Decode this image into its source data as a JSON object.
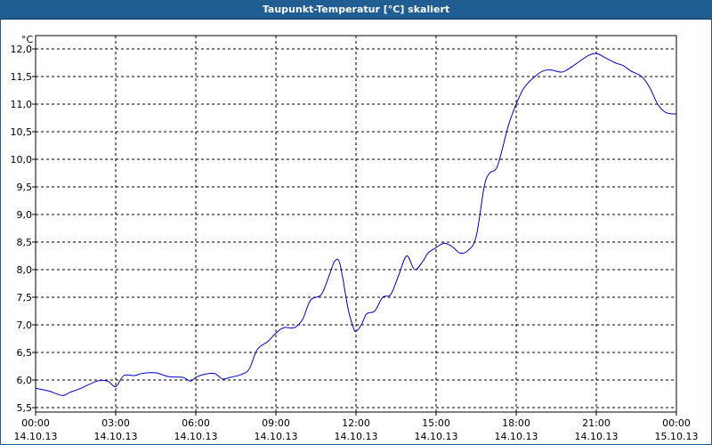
{
  "window": {
    "title": "Taupunkt-Temperatur [°C] skaliert"
  },
  "chart_data": {
    "type": "line",
    "title": "Taupunkt-Temperatur [°C] skaliert",
    "unit": "°C",
    "xlabel": "",
    "ylabel": "",
    "ylim": [
      5.5,
      12.0
    ],
    "xlim": [
      "2013-10-14 00:00",
      "2013-10-15 00:00"
    ],
    "grid": true,
    "y_ticks": [
      "12,0",
      "11,5",
      "11,0",
      "10,5",
      "10,0",
      "9,5",
      "9,0",
      "8,5",
      "8,0",
      "7,5",
      "7,0",
      "6,5",
      "6,0",
      "5,5"
    ],
    "x_ticks": [
      {
        "time": "00:00",
        "date": "14.10.13"
      },
      {
        "time": "03:00",
        "date": "14.10.13"
      },
      {
        "time": "06:00",
        "date": "14.10.13"
      },
      {
        "time": "09:00",
        "date": "14.10.13"
      },
      {
        "time": "12:00",
        "date": "14.10.13"
      },
      {
        "time": "15:00",
        "date": "14.10.13"
      },
      {
        "time": "18:00",
        "date": "14.10.13"
      },
      {
        "time": "21:00",
        "date": "14.10.13"
      },
      {
        "time": "00:00",
        "date": "15.10.13"
      }
    ],
    "series": [
      {
        "color": "#0000c8",
        "x_hours": [
          0,
          0.5,
          1,
          1.3,
          1.7,
          2.3,
          2.7,
          3,
          3.3,
          3.7,
          4,
          4.5,
          5,
          5.5,
          5.8,
          6,
          6.3,
          6.7,
          7,
          7.3,
          7.7,
          8,
          8.3,
          8.7,
          9,
          9.3,
          9.7,
          10,
          10.3,
          10.7,
          11,
          11.2,
          11.4,
          11.7,
          11.9,
          12.0,
          12.2,
          12.4,
          12.7,
          13,
          13.3,
          13.6,
          13.9,
          14.2,
          14.5,
          14.7,
          15,
          15.3,
          15.6,
          15.9,
          16.2,
          16.5,
          16.8,
          17,
          17.3,
          17.7,
          18,
          18.3,
          18.7,
          19,
          19.3,
          19.7,
          20,
          20.3,
          20.7,
          21,
          21.3,
          21.7,
          22,
          22.3,
          22.7,
          23,
          23.3,
          23.6,
          24
        ],
        "values": [
          5.85,
          5.8,
          5.72,
          5.78,
          5.85,
          5.98,
          5.98,
          5.88,
          6.08,
          6.08,
          6.12,
          6.13,
          6.06,
          6.05,
          5.98,
          6.05,
          6.1,
          6.12,
          6.02,
          6.05,
          6.1,
          6.2,
          6.55,
          6.7,
          6.85,
          6.95,
          6.95,
          7.1,
          7.45,
          7.55,
          7.9,
          8.15,
          8.1,
          7.3,
          6.95,
          6.88,
          7.0,
          7.2,
          7.25,
          7.5,
          7.55,
          7.9,
          8.25,
          8.0,
          8.15,
          8.3,
          8.4,
          8.48,
          8.42,
          8.3,
          8.35,
          8.6,
          9.5,
          9.75,
          9.88,
          10.6,
          11.0,
          11.3,
          11.5,
          11.6,
          11.62,
          11.58,
          11.65,
          11.75,
          11.88,
          11.92,
          11.85,
          11.75,
          11.7,
          11.6,
          11.5,
          11.3,
          11.0,
          10.85,
          10.82
        ]
      }
    ]
  }
}
